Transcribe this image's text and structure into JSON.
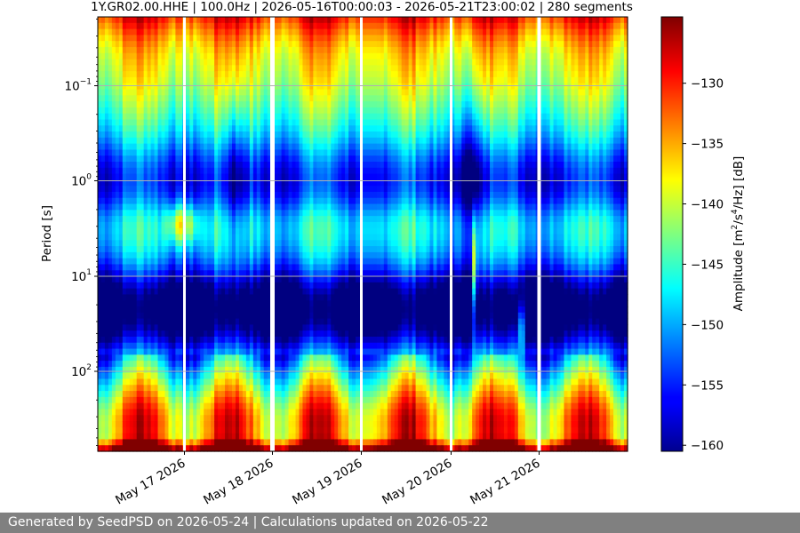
{
  "chart_data": {
    "type": "heatmap",
    "title": "1Y.GR02.00.HHE | 100.0Hz | 2026-05-16T00:00:03 - 2026-05-21T23:00:02 | 280 segments",
    "ylabel": "Period [s]",
    "colorbar_label": "Amplitude [m²/s⁴/Hz] [dB]",
    "colorbar_label_main": "Amplitude [m",
    "colorbar_label_exp1": "2",
    "colorbar_label_mid": "/s",
    "colorbar_label_exp2": "4",
    "colorbar_label_end": "/Hz] [dB]",
    "colormap": "jet",
    "x_start": "2026-05-16T00:00:03",
    "x_end": "2026-05-21T23:00:02",
    "segments": 280,
    "x_ticks": [
      "May 17 2026",
      "May 18 2026",
      "May 19 2026",
      "May 20 2026",
      "May 21 2026"
    ],
    "y_scale": "log",
    "y_ticks": [
      {
        "base": "10",
        "exp": "−1",
        "value": 0.1
      },
      {
        "base": "10",
        "exp": "0",
        "value": 1
      },
      {
        "base": "10",
        "exp": "1",
        "value": 10
      },
      {
        "base": "10",
        "exp": "2",
        "value": 100
      }
    ],
    "y_range_s": [
      0.019,
      720
    ],
    "y_inverted": true,
    "grid": true,
    "colorbar_range_db": [
      -160.5,
      -124.5
    ],
    "colorbar_ticks": [
      "−130",
      "−135",
      "−140",
      "−145",
      "−150",
      "−155",
      "−160"
    ],
    "data_gaps": [
      "2026-05-17",
      "2026-05-18",
      "2026-05-19",
      "2026-05-20",
      "2026-05-21"
    ]
  },
  "footer": {
    "text": "Generated by SeedPSD on 2026-05-24 | Calculations updated on 2026-05-22"
  },
  "colors": {
    "grid": "#b0b0b0",
    "gap": "#ffffff",
    "footer_bg": "#808080",
    "footer_text": "#ffffff"
  }
}
